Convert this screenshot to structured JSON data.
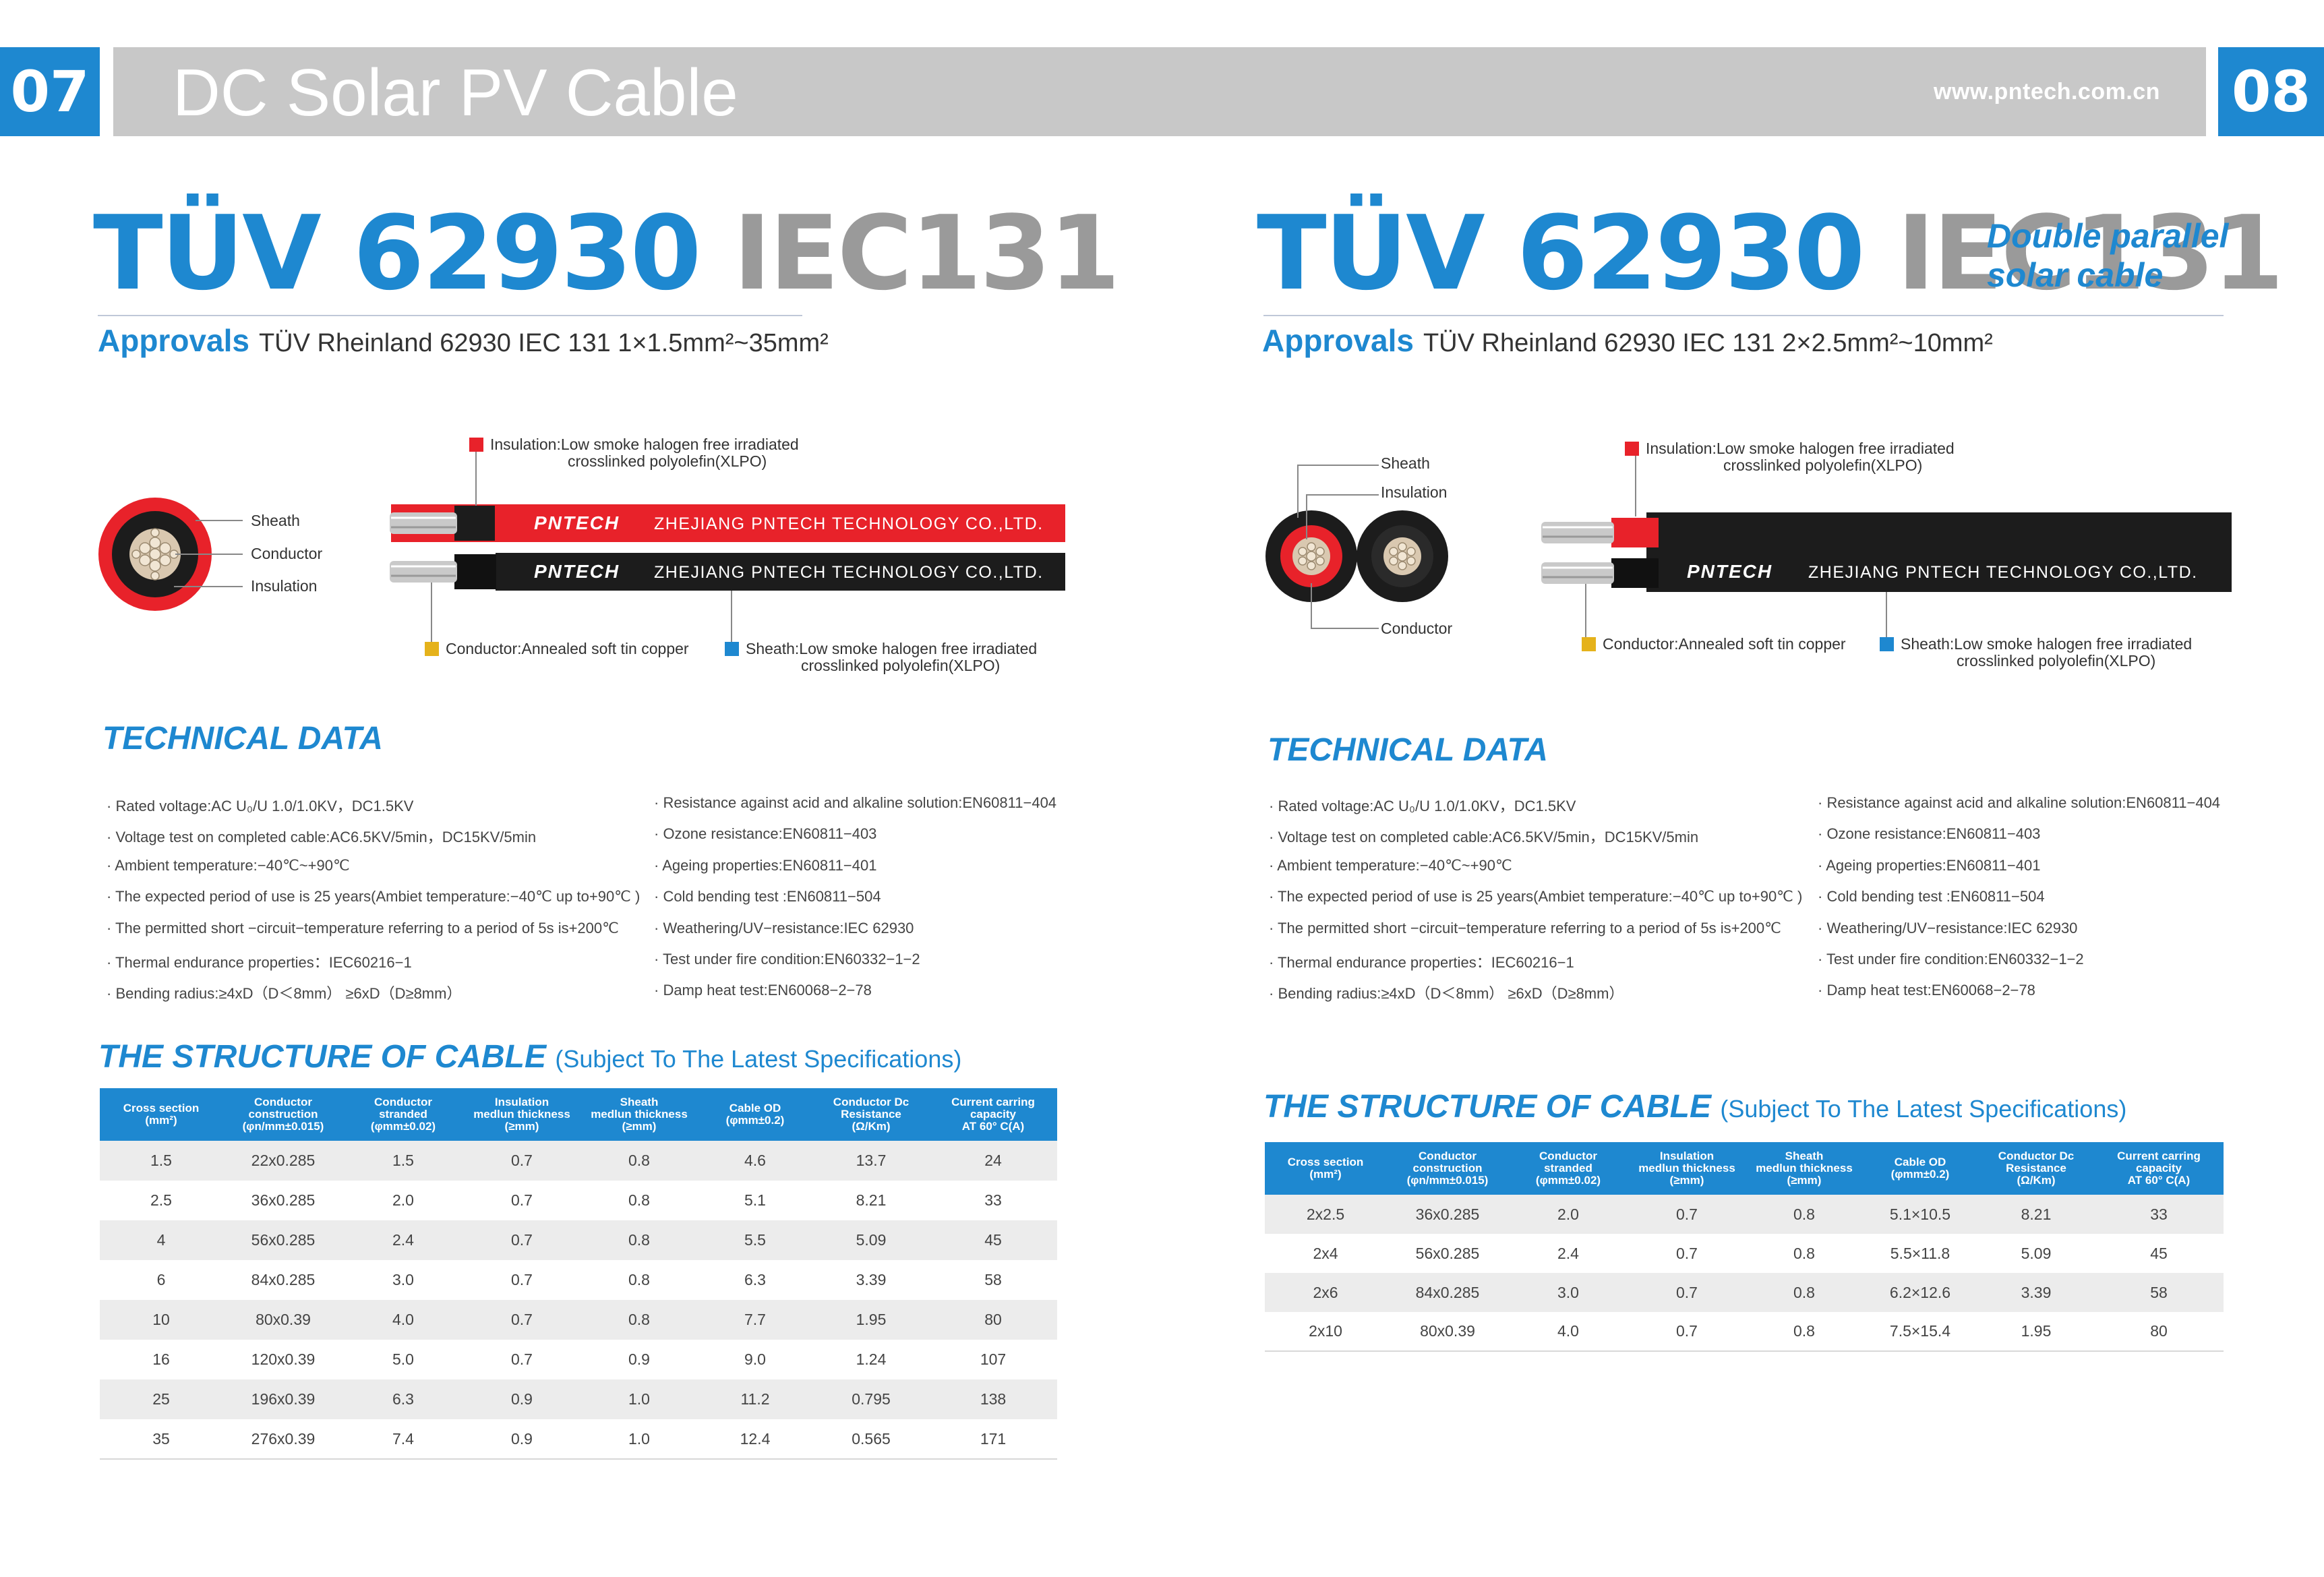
{
  "header": {
    "page_left": "07",
    "page_right": "08",
    "title": "DC Solar PV Cable",
    "url": "www.pntech.com.cn"
  },
  "left": {
    "title_blue": "TÜV 62930",
    "title_gray": "IEC131",
    "approvals_label": "Approvals",
    "approvals_text": "TÜV Rheinland 62930 IEC 131 1×1.5mm²~35mm²",
    "labels": {
      "insulation_1": "Insulation:Low smoke halogen free irradiated",
      "insulation_2": "crosslinked polyolefin(XLPO)",
      "sheath": "Sheath",
      "conductor": "Conductor",
      "insulation": "Insulation",
      "conductor_desc": "Conductor:Annealed soft tin copper",
      "sheath_desc_1": "Sheath:Low smoke halogen free irradiated",
      "sheath_desc_2": "crosslinked polyolefin(XLPO)"
    },
    "cable_brand": "PNTECH",
    "cable_text": "ZHEJIANG PNTECH TECHNOLOGY CO.,LTD.",
    "tech_heading": "TECHNICAL DATA",
    "structure_heading": "THE STRUCTURE OF CABLE",
    "structure_sub": "(Subject To The Latest Specifications)",
    "table": {
      "headers": [
        [
          "Cross section",
          "(mm²)"
        ],
        [
          "Conductor",
          "construction",
          "(φn/mm±0.015)"
        ],
        [
          "Conductor",
          "stranded",
          "(φmm±0.02)"
        ],
        [
          "Insulation",
          "medlun thickness",
          "(≥mm)"
        ],
        [
          "Sheath",
          "medlun thickness",
          "(≥mm)"
        ],
        [
          "Cable OD",
          "(φmm±0.2)"
        ],
        [
          "Conductor Dc",
          "Resistance",
          "(Ω/Km)"
        ],
        [
          "Current carring",
          "capacity",
          "AT 60° C(A)"
        ]
      ],
      "rows": [
        [
          "1.5",
          "22x0.285",
          "1.5",
          "0.7",
          "0.8",
          "4.6",
          "13.7",
          "24"
        ],
        [
          "2.5",
          "36x0.285",
          "2.0",
          "0.7",
          "0.8",
          "5.1",
          "8.21",
          "33"
        ],
        [
          "4",
          "56x0.285",
          "2.4",
          "0.7",
          "0.8",
          "5.5",
          "5.09",
          "45"
        ],
        [
          "6",
          "84x0.285",
          "3.0",
          "0.7",
          "0.8",
          "6.3",
          "3.39",
          "58"
        ],
        [
          "10",
          "80x0.39",
          "4.0",
          "0.7",
          "0.8",
          "7.7",
          "1.95",
          "80"
        ],
        [
          "16",
          "120x0.39",
          "5.0",
          "0.7",
          "0.9",
          "9.0",
          "1.24",
          "107"
        ],
        [
          "25",
          "196x0.39",
          "6.3",
          "0.9",
          "1.0",
          "11.2",
          "0.795",
          "138"
        ],
        [
          "35",
          "276x0.39",
          "7.4",
          "0.9",
          "1.0",
          "12.4",
          "0.565",
          "171"
        ]
      ]
    }
  },
  "right": {
    "title_blue": "TÜV 62930",
    "title_gray": "IEC131",
    "title_extra_1": "Double parallel",
    "title_extra_2": "solar cable",
    "approvals_label": "Approvals",
    "approvals_text": "TÜV Rheinland 62930 IEC 131 2×2.5mm²~10mm²",
    "labels": {
      "insulation_1": "Insulation:Low smoke halogen free irradiated",
      "insulation_2": "crosslinked polyolefin(XLPO)",
      "sheath": "Sheath",
      "insulation": "Insulation",
      "conductor": "Conductor",
      "conductor_desc": "Conductor:Annealed soft tin copper",
      "sheath_desc_1": "Sheath:Low smoke halogen free irradiated",
      "sheath_desc_2": "crosslinked polyolefin(XLPO)"
    },
    "cable_brand": "PNTECH",
    "cable_text": "ZHEJIANG PNTECH TECHNOLOGY CO.,LTD.",
    "tech_heading": "TECHNICAL DATA",
    "structure_heading": "THE STRUCTURE OF CABLE",
    "structure_sub": "(Subject To The Latest Specifications)",
    "table": {
      "headers": [
        [
          "Cross section",
          "(mm²)"
        ],
        [
          "Conductor",
          "construction",
          "(φn/mm±0.015)"
        ],
        [
          "Conductor",
          "stranded",
          "(φmm±0.02)"
        ],
        [
          "Insulation",
          "medlun thickness",
          "(≥mm)"
        ],
        [
          "Sheath",
          "medlun thickness",
          "(≥mm)"
        ],
        [
          "Cable OD",
          "(φmm±0.2)"
        ],
        [
          "Conductor Dc",
          "Resistance",
          "(Ω/Km)"
        ],
        [
          "Current carring",
          "capacity",
          "AT 60° C(A)"
        ]
      ],
      "rows": [
        [
          "2x2.5",
          "36x0.285",
          "2.0",
          "0.7",
          "0.8",
          "5.1×10.5",
          "8.21",
          "33"
        ],
        [
          "2x4",
          "56x0.285",
          "2.4",
          "0.7",
          "0.8",
          "5.5×11.8",
          "5.09",
          "45"
        ],
        [
          "2x6",
          "84x0.285",
          "3.0",
          "0.7",
          "0.8",
          "6.2×12.6",
          "3.39",
          "58"
        ],
        [
          "2x10",
          "80x0.39",
          "4.0",
          "0.7",
          "0.8",
          "7.5×15.4",
          "1.95",
          "80"
        ]
      ]
    }
  },
  "technical_data": {
    "col1": [
      "· Rated voltage:AC U₀/U 1.0/1.0KV，DC1.5KV",
      "· Voltage test on completed cable:AC6.5KV/5min，DC15KV/5min",
      "· Ambient temperature:−40℃~+90℃",
      "· The expected period of use is 25 years(Ambiet temperature:−40℃ up to+90℃ )",
      "· The permitted short −circuit−temperature referring to a period of 5s is+200℃",
      "· Thermal endurance properties：IEC60216−1",
      "· Bending radius:≥4xD（D＜8mm） ≥6xD（D≥8mm）"
    ],
    "col2": [
      "· Resistance against acid and alkaline solution:EN60811−404",
      "· Ozone resistance:EN60811−403",
      "· Ageing properties:EN60811−401",
      "· Cold bending test :EN60811−504",
      "· Weathering/UV−resistance:IEC 62930",
      "· Test under fire condition:EN60332−1−2",
      "· Damp heat test:EN60068−2−78"
    ]
  },
  "colors": {
    "accent_blue": "#1e88d0",
    "header_gray": "#c8c8c8",
    "title_gray": "#9a9a9a",
    "cable_red": "#e8222a",
    "cable_black": "#1c1c1c"
  }
}
